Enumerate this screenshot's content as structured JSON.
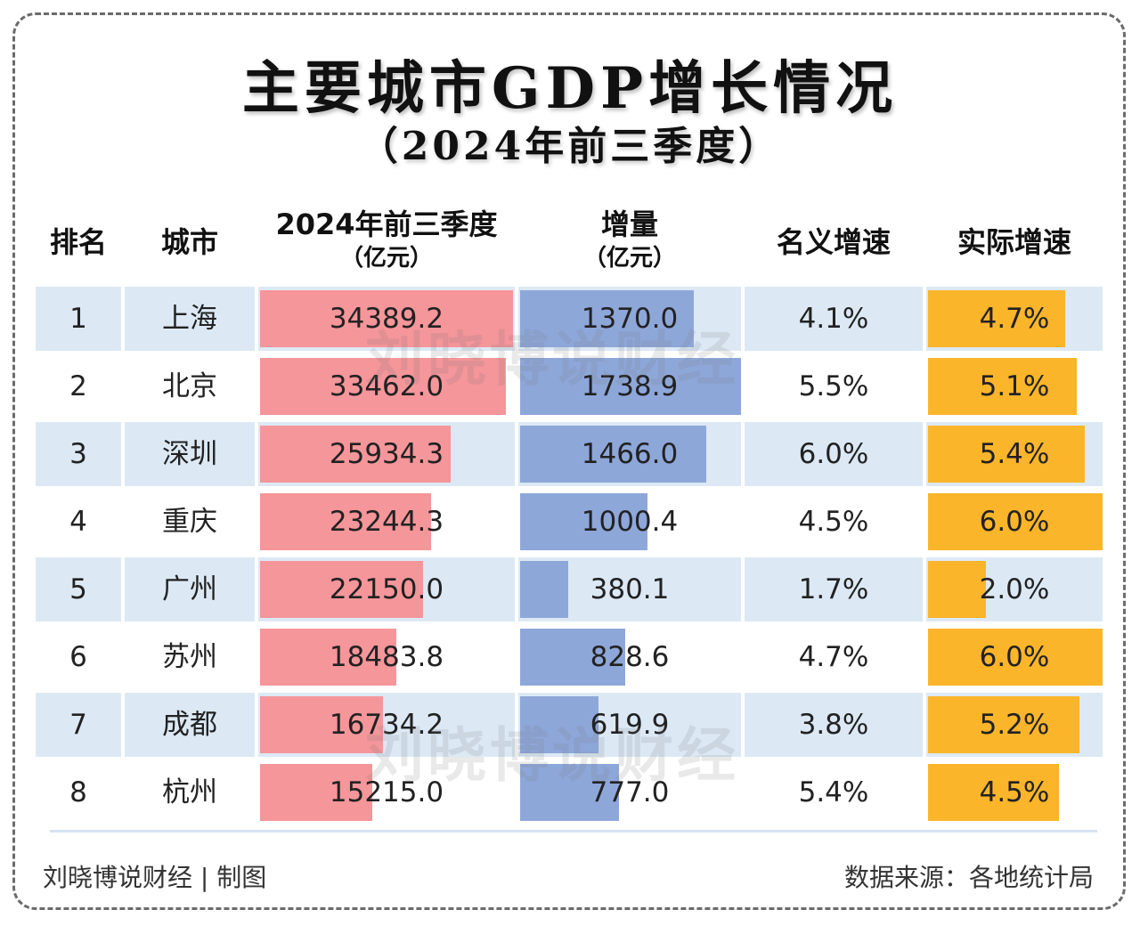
{
  "title": "主要城市GDP增长情况",
  "subtitle": "（2024年前三季度）",
  "headers": {
    "rank": "排名",
    "city": "城市",
    "gdp": "2024年前三季度",
    "gdp_unit": "（亿元）",
    "increase": "增量",
    "increase_unit": "（亿元）",
    "nominal": "名义增速",
    "real": "实际增速"
  },
  "chart_data": {
    "type": "table",
    "title": "主要城市GDP增长情况（2024年前三季度）",
    "columns": [
      "排名",
      "城市",
      "2024年前三季度（亿元）",
      "增量（亿元）",
      "名义增速",
      "实际增速"
    ],
    "rows": [
      {
        "rank": "1",
        "city": "上海",
        "gdp": "34389.2",
        "increase": "1370.0",
        "nominal": "4.1%",
        "real": "4.7%",
        "gdp_v": 34389.2,
        "inc_v": 1370.0,
        "real_v": 4.7
      },
      {
        "rank": "2",
        "city": "北京",
        "gdp": "33462.0",
        "increase": "1738.9",
        "nominal": "5.5%",
        "real": "5.1%",
        "gdp_v": 33462.0,
        "inc_v": 1738.9,
        "real_v": 5.1
      },
      {
        "rank": "3",
        "city": "深圳",
        "gdp": "25934.3",
        "increase": "1466.0",
        "nominal": "6.0%",
        "real": "5.4%",
        "gdp_v": 25934.3,
        "inc_v": 1466.0,
        "real_v": 5.4
      },
      {
        "rank": "4",
        "city": "重庆",
        "gdp": "23244.3",
        "increase": "1000.4",
        "nominal": "4.5%",
        "real": "6.0%",
        "gdp_v": 23244.3,
        "inc_v": 1000.4,
        "real_v": 6.0
      },
      {
        "rank": "5",
        "city": "广州",
        "gdp": "22150.0",
        "increase": "380.1",
        "nominal": "1.7%",
        "real": "2.0%",
        "gdp_v": 22150.0,
        "inc_v": 380.1,
        "real_v": 2.0
      },
      {
        "rank": "6",
        "city": "苏州",
        "gdp": "18483.8",
        "increase": "828.6",
        "nominal": "4.7%",
        "real": "6.0%",
        "gdp_v": 18483.8,
        "inc_v": 828.6,
        "real_v": 6.0
      },
      {
        "rank": "7",
        "city": "成都",
        "gdp": "16734.2",
        "increase": "619.9",
        "nominal": "3.8%",
        "real": "5.2%",
        "gdp_v": 16734.2,
        "inc_v": 619.9,
        "real_v": 5.2
      },
      {
        "rank": "8",
        "city": "杭州",
        "gdp": "15215.0",
        "increase": "777.0",
        "nominal": "5.4%",
        "real": "4.5%",
        "gdp_v": 15215.0,
        "inc_v": 777.0,
        "real_v": 4.5
      }
    ]
  },
  "colors": {
    "gdp_bar": "#f5969a",
    "increase_bar": "#8ea7d9",
    "real_bar": "#fbb52b",
    "row_stripe": "#dce9f5"
  },
  "watermark": "刘晓博说财经",
  "footer": {
    "left": "刘晓博说财经 | 制图",
    "right": "数据来源：各地统计局"
  }
}
